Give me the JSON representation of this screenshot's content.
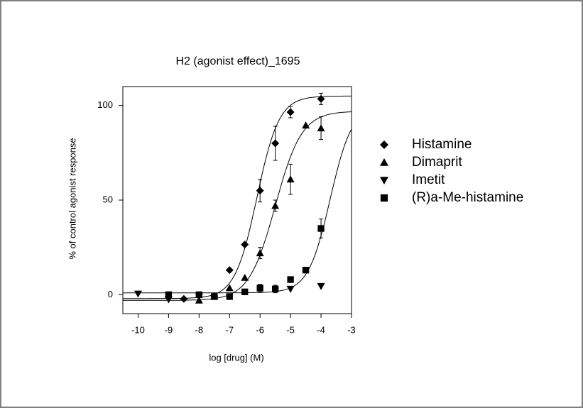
{
  "chart_data": {
    "type": "scatter",
    "title": "H2 (agonist effect)_1695",
    "x_label": "log [drug] (M)",
    "y_label": "% of  control agonist response",
    "xlim": [
      -10.5,
      -3
    ],
    "xticks": [
      -10,
      -9,
      -8,
      -7,
      -6,
      -5,
      -4,
      -3
    ],
    "ylim": [
      -10,
      110
    ],
    "yticks": [
      0,
      50,
      100
    ],
    "series": [
      {
        "name": "Histamine",
        "marker": "diamond",
        "color": "#000000",
        "x": [
          -8.5,
          -7.5,
          -7,
          -6.5,
          -6,
          -5.5,
          -5,
          -4
        ],
        "values": [
          -2.2,
          -0.7,
          13,
          26.5,
          55,
          80,
          96.5,
          103.5
        ],
        "errors": [
          null,
          null,
          null,
          null,
          6,
          9,
          3,
          3
        ],
        "fit": {
          "bottom": -2,
          "top": 105,
          "logec50": -6.1,
          "hill": 1.2
        }
      },
      {
        "name": "Dimaprit",
        "marker": "triangle-up",
        "color": "#000000",
        "x": [
          -8,
          -7.5,
          -7,
          -6.5,
          -6,
          -5.5,
          -5,
          -4.5,
          -4
        ],
        "values": [
          -3,
          -1,
          3.5,
          9,
          22,
          47,
          61,
          89.5,
          88
        ],
        "errors": [
          null,
          null,
          null,
          null,
          3,
          3,
          8,
          null,
          6
        ],
        "fit": {
          "bottom": -3,
          "top": 97,
          "logec50": -5.5,
          "hill": 1.0
        }
      },
      {
        "name": "Imetit",
        "marker": "triangle-down",
        "color": "#000000",
        "x": [
          -10,
          -9,
          -8,
          -5,
          -4
        ],
        "values": [
          0.5,
          -2.5,
          -1,
          3,
          4.5
        ],
        "errors": [
          null,
          null,
          null,
          null,
          null
        ]
      },
      {
        "name": "(R)a-Me-histamine",
        "marker": "square",
        "color": "#000000",
        "x": [
          -9,
          -8,
          -7.5,
          -7,
          -6.5,
          -6,
          -5.5,
          -5,
          -4.5,
          -4
        ],
        "values": [
          0,
          0,
          -1,
          -1,
          1.5,
          3.5,
          3,
          8,
          13,
          35
        ],
        "errors": [
          null,
          null,
          null,
          null,
          null,
          2,
          2,
          null,
          null,
          5
        ],
        "fit": {
          "bottom": 1,
          "top": 100,
          "logec50": -3.7,
          "hill": 1.2
        }
      }
    ]
  }
}
